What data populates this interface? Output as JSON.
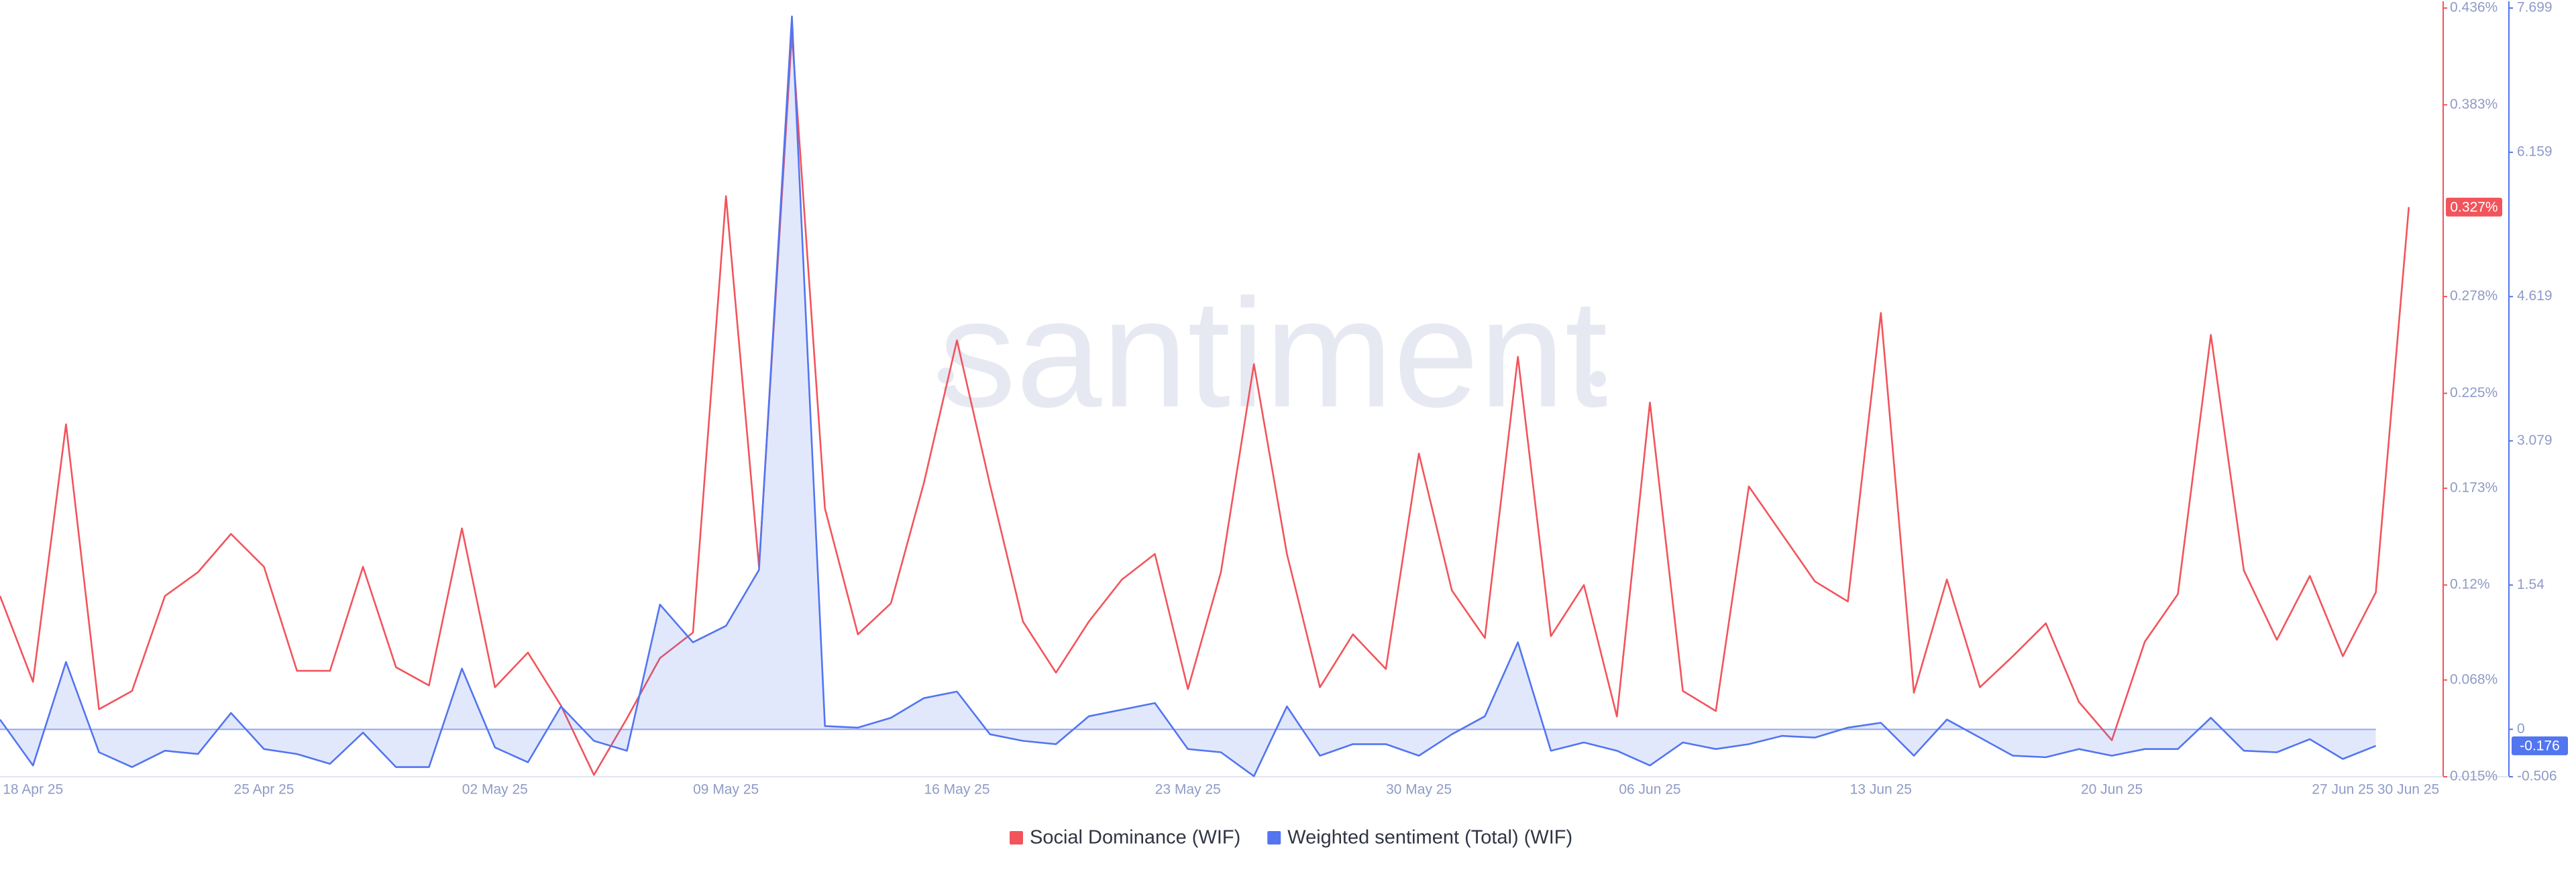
{
  "chart_data": {
    "type": "line",
    "watermark": "santiment",
    "x": [
      "2025-04-17",
      "2025-04-18",
      "2025-04-19",
      "2025-04-20",
      "2025-04-21",
      "2025-04-22",
      "2025-04-23",
      "2025-04-24",
      "2025-04-25",
      "2025-04-26",
      "2025-04-27",
      "2025-04-28",
      "2025-04-29",
      "2025-04-30",
      "2025-05-01",
      "2025-05-02",
      "2025-05-03",
      "2025-05-04",
      "2025-05-05",
      "2025-05-06",
      "2025-05-07",
      "2025-05-08",
      "2025-05-09",
      "2025-05-10",
      "2025-05-11",
      "2025-05-12",
      "2025-05-13",
      "2025-05-14",
      "2025-05-15",
      "2025-05-16",
      "2025-05-17",
      "2025-05-18",
      "2025-05-19",
      "2025-05-20",
      "2025-05-21",
      "2025-05-22",
      "2025-05-23",
      "2025-05-24",
      "2025-05-25",
      "2025-05-26",
      "2025-05-27",
      "2025-05-28",
      "2025-05-29",
      "2025-05-30",
      "2025-05-31",
      "2025-06-01",
      "2025-06-02",
      "2025-06-03",
      "2025-06-04",
      "2025-06-05",
      "2025-06-06",
      "2025-06-07",
      "2025-06-08",
      "2025-06-09",
      "2025-06-10",
      "2025-06-11",
      "2025-06-12",
      "2025-06-13",
      "2025-06-14",
      "2025-06-15",
      "2025-06-16",
      "2025-06-17",
      "2025-06-18",
      "2025-06-19",
      "2025-06-20",
      "2025-06-21",
      "2025-06-22",
      "2025-06-23",
      "2025-06-24",
      "2025-06-25",
      "2025-06-26",
      "2025-06-27",
      "2025-06-28",
      "2025-06-29"
    ],
    "xlim": [
      "2025-04-17",
      "2025-06-30"
    ],
    "xticks": [
      {
        "value": "2025-04-18",
        "label": "18 Apr 25"
      },
      {
        "value": "2025-04-25",
        "label": "25 Apr 25"
      },
      {
        "value": "2025-05-02",
        "label": "02 May 25"
      },
      {
        "value": "2025-05-09",
        "label": "09 May 25"
      },
      {
        "value": "2025-05-16",
        "label": "16 May 25"
      },
      {
        "value": "2025-05-23",
        "label": "23 May 25"
      },
      {
        "value": "2025-05-30",
        "label": "30 May 25"
      },
      {
        "value": "2025-06-06",
        "label": "06 Jun 25"
      },
      {
        "value": "2025-06-13",
        "label": "13 Jun 25"
      },
      {
        "value": "2025-06-20",
        "label": "20 Jun 25"
      },
      {
        "value": "2025-06-27",
        "label": "27 Jun 25"
      },
      {
        "value": "2025-06-30",
        "label": "30 Jun 25"
      }
    ],
    "ylim": [
      0.015,
      0.436
    ],
    "yticks": [
      {
        "value": 0.015,
        "label": "0.015%"
      },
      {
        "value": 0.068,
        "label": "0.068%"
      },
      {
        "value": 0.12,
        "label": "0.12%"
      },
      {
        "value": 0.173,
        "label": "0.173%"
      },
      {
        "value": 0.225,
        "label": "0.225%"
      },
      {
        "value": 0.278,
        "label": "0.278%"
      },
      {
        "value": 0.383,
        "label": "0.383%"
      },
      {
        "value": 0.436,
        "label": "0.436%"
      }
    ],
    "y2lim": [
      -0.506,
      7.699
    ],
    "y2ticks": [
      -0.506,
      0,
      1.54,
      3.079,
      4.619,
      6.159,
      7.699
    ],
    "series": [
      {
        "name": "Social Dominance (WIF)",
        "color": "#f2545b",
        "axis": "y",
        "last_value_label": "0.327%",
        "values": [
          0.114,
          0.067,
          0.208,
          0.052,
          0.062,
          0.114,
          0.127,
          0.148,
          0.13,
          0.073,
          0.073,
          0.13,
          0.075,
          0.065,
          0.151,
          0.064,
          0.083,
          0.054,
          0.016,
          0.047,
          0.08,
          0.094,
          0.333,
          0.13,
          0.422,
          0.162,
          0.093,
          0.11,
          0.176,
          0.254,
          0.175,
          0.1,
          0.072,
          0.1,
          0.123,
          0.137,
          0.063,
          0.127,
          0.241,
          0.137,
          0.064,
          0.093,
          0.074,
          0.192,
          0.117,
          0.091,
          0.245,
          0.092,
          0.12,
          0.048,
          0.22,
          0.062,
          0.051,
          0.174,
          0.148,
          0.122,
          0.111,
          0.269,
          0.061,
          0.123,
          0.064,
          0.081,
          0.099,
          0.056,
          0.035,
          0.089,
          0.115,
          0.257,
          0.128,
          0.09,
          0.125,
          0.081,
          0.116,
          0.327
        ]
      },
      {
        "name": "Weighted sentiment (Total) (WIF)",
        "color": "#5275f0",
        "axis": "y2",
        "last_value_label": "-0.176",
        "values": [
          0.105,
          -0.386,
          0.719,
          -0.245,
          -0.403,
          -0.228,
          -0.263,
          0.175,
          -0.21,
          -0.263,
          -0.368,
          -0.035,
          -0.403,
          -0.403,
          0.649,
          -0.193,
          -0.351,
          0.245,
          -0.123,
          -0.228,
          1.332,
          0.929,
          1.104,
          1.701,
          7.609,
          0.035,
          0.018,
          0.123,
          0.333,
          0.403,
          -0.053,
          -0.123,
          -0.158,
          0.14,
          0.21,
          0.281,
          -0.21,
          -0.245,
          -0.5,
          0.245,
          -0.281,
          -0.158,
          -0.158,
          -0.281,
          -0.053,
          0.14,
          0.929,
          -0.228,
          -0.14,
          -0.228,
          -0.386,
          -0.14,
          -0.21,
          -0.158,
          -0.07,
          -0.088,
          0.018,
          0.07,
          -0.281,
          0.105,
          -0.088,
          -0.281,
          -0.298,
          -0.21,
          -0.281,
          -0.21,
          -0.21,
          0.123,
          -0.228,
          -0.245,
          -0.105,
          -0.316,
          -0.176,
          null
        ]
      }
    ]
  }
}
